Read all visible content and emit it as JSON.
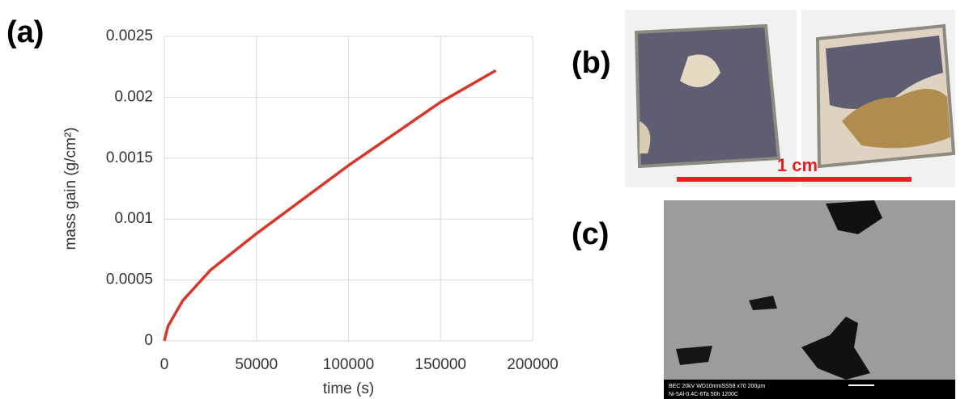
{
  "panels": {
    "a": "(a)",
    "b": "(b)",
    "c": "(c)"
  },
  "chart_data": {
    "type": "line",
    "x_label": "time (s)",
    "y_label": "mass gain (g/cm²)",
    "x": [
      0,
      2000,
      10000,
      25000,
      50000,
      75000,
      100000,
      125000,
      150000,
      180000
    ],
    "series": [
      {
        "color": "#d9362b",
        "values": [
          0,
          0.00012,
          0.00033,
          0.00058,
          0.00088,
          0.00116,
          0.00144,
          0.0017,
          0.00196,
          0.00222
        ]
      }
    ],
    "xlim": [
      0,
      200000
    ],
    "xticks": [
      0,
      50000,
      100000,
      150000,
      200000
    ],
    "ylim": [
      0,
      0.0025
    ],
    "yticks": [
      0,
      0.0005,
      0.001,
      0.0015,
      0.002,
      0.0025
    ],
    "grid": true
  },
  "photo": {
    "scale_label": "1 cm"
  },
  "sem": {
    "info_line1": "BEC 20kV   WD10mmSS58        x70      200µm",
    "info_line2": "Ni-5Al-0.4C-6Ta 50h 1200C"
  }
}
